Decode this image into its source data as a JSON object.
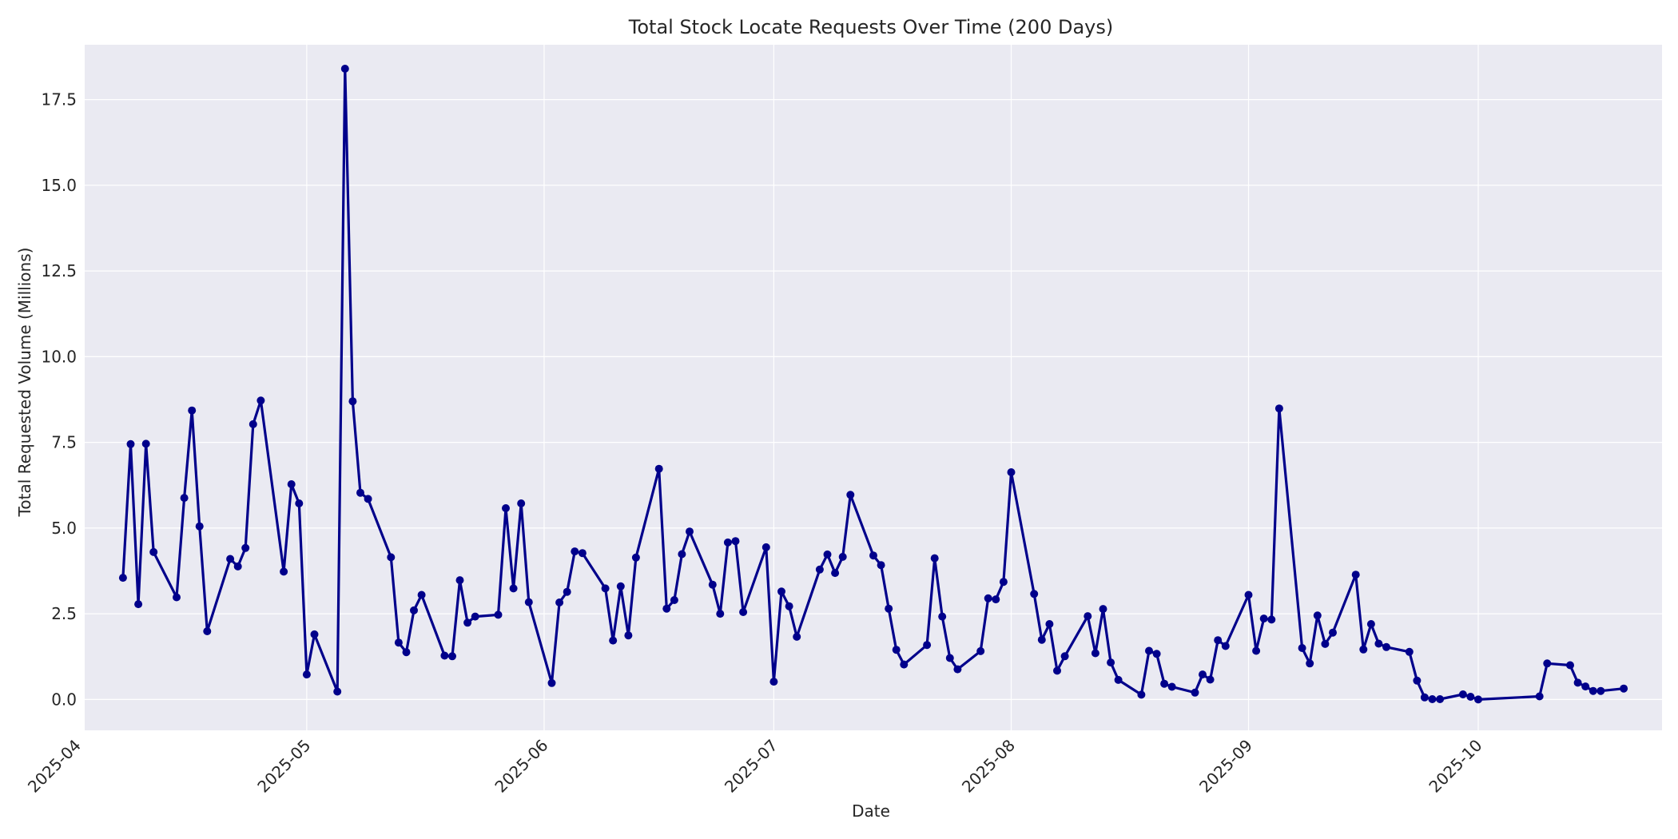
{
  "chart_data": {
    "type": "line",
    "title": "Total Stock Locate Requests Over Time (200 Days)",
    "xlabel": "Date",
    "ylabel": "Total Requested Volume (Millions)",
    "xlim": [
      "2025-04-02",
      "2025-10-25"
    ],
    "ylim": [
      -0.9,
      19.1
    ],
    "grid": true,
    "background_color": "#eaeaf2",
    "line_color": "#00008b",
    "y_ticks": [
      "0.0",
      "2.5",
      "5.0",
      "7.5",
      "10.0",
      "12.5",
      "15.0",
      "17.5"
    ],
    "x_ticks": [
      "2025-04",
      "2025-05",
      "2025-06",
      "2025-07",
      "2025-08",
      "2025-09",
      "2025-10"
    ],
    "series": [
      {
        "x": [
          "2025-04-07",
          "2025-04-08",
          "2025-04-09",
          "2025-04-10",
          "2025-04-11",
          "2025-04-14",
          "2025-04-15",
          "2025-04-16",
          "2025-04-17",
          "2025-04-18",
          "2025-04-21",
          "2025-04-22",
          "2025-04-23",
          "2025-04-24",
          "2025-04-25",
          "2025-04-28",
          "2025-04-29",
          "2025-04-30",
          "2025-05-01",
          "2025-05-02",
          "2025-05-05",
          "2025-05-06",
          "2025-05-07",
          "2025-05-08",
          "2025-05-09",
          "2025-05-12",
          "2025-05-13",
          "2025-05-14",
          "2025-05-15",
          "2025-05-16",
          "2025-05-19",
          "2025-05-20",
          "2025-05-21",
          "2025-05-22",
          "2025-05-23",
          "2025-05-26",
          "2025-05-27",
          "2025-05-28",
          "2025-05-29",
          "2025-05-30",
          "2025-06-02",
          "2025-06-03",
          "2025-06-04",
          "2025-06-05",
          "2025-06-06",
          "2025-06-09",
          "2025-06-10",
          "2025-06-11",
          "2025-06-12",
          "2025-06-13",
          "2025-06-16",
          "2025-06-17",
          "2025-06-18",
          "2025-06-19",
          "2025-06-20",
          "2025-06-23",
          "2025-06-24",
          "2025-06-25",
          "2025-06-26",
          "2025-06-27",
          "2025-06-30",
          "2025-07-01",
          "2025-07-02",
          "2025-07-03",
          "2025-07-04",
          "2025-07-07",
          "2025-07-08",
          "2025-07-09",
          "2025-07-10",
          "2025-07-11",
          "2025-07-14",
          "2025-07-15",
          "2025-07-16",
          "2025-07-17",
          "2025-07-18",
          "2025-07-21",
          "2025-07-22",
          "2025-07-23",
          "2025-07-24",
          "2025-07-25",
          "2025-07-28",
          "2025-07-29",
          "2025-07-30",
          "2025-07-31",
          "2025-08-01",
          "2025-08-04",
          "2025-08-05",
          "2025-08-06",
          "2025-08-07",
          "2025-08-08",
          "2025-08-11",
          "2025-08-12",
          "2025-08-13",
          "2025-08-14",
          "2025-08-15",
          "2025-08-18",
          "2025-08-19",
          "2025-08-20",
          "2025-08-21",
          "2025-08-22",
          "2025-08-25",
          "2025-08-26",
          "2025-08-27",
          "2025-08-28",
          "2025-08-29",
          "2025-09-01",
          "2025-09-02",
          "2025-09-03",
          "2025-09-04",
          "2025-09-05",
          "2025-09-08",
          "2025-09-09",
          "2025-09-10",
          "2025-09-11",
          "2025-09-12",
          "2025-09-15",
          "2025-09-16",
          "2025-09-17",
          "2025-09-18",
          "2025-09-19",
          "2025-09-22",
          "2025-09-23",
          "2025-09-24",
          "2025-09-25",
          "2025-09-26",
          "2025-09-29",
          "2025-09-30",
          "2025-10-01",
          "2025-10-09",
          "2025-10-10",
          "2025-10-13",
          "2025-10-14",
          "2025-10-15",
          "2025-10-16",
          "2025-10-17",
          "2025-10-20"
        ],
        "values": [
          3.55,
          7.45,
          2.78,
          7.46,
          4.3,
          2.98,
          5.88,
          8.43,
          5.05,
          1.99,
          4.1,
          3.88,
          4.42,
          8.03,
          8.72,
          3.73,
          6.28,
          5.72,
          0.73,
          1.9,
          0.23,
          18.4,
          8.7,
          6.03,
          5.85,
          4.15,
          1.66,
          1.38,
          2.6,
          3.05,
          1.28,
          1.26,
          3.48,
          2.24,
          2.42,
          2.47,
          5.58,
          3.24,
          5.72,
          2.84,
          0.48,
          2.83,
          3.14,
          4.32,
          4.27,
          3.24,
          1.72,
          3.3,
          1.87,
          4.14,
          6.73,
          2.65,
          2.9,
          4.24,
          4.9,
          3.35,
          2.5,
          4.58,
          4.62,
          2.55,
          4.44,
          0.52,
          3.15,
          2.72,
          1.83,
          3.79,
          4.23,
          3.69,
          4.16,
          5.97,
          4.2,
          3.92,
          2.65,
          1.45,
          1.02,
          1.59,
          4.12,
          2.42,
          1.21,
          0.88,
          1.41,
          2.95,
          2.92,
          3.43,
          6.63,
          3.08,
          1.74,
          2.2,
          0.84,
          1.26,
          2.43,
          1.35,
          2.64,
          1.08,
          0.57,
          0.14,
          1.42,
          1.33,
          0.46,
          0.37,
          0.2,
          0.73,
          0.58,
          1.73,
          1.56,
          3.05,
          1.42,
          2.36,
          2.33,
          8.49,
          1.5,
          1.05,
          2.45,
          1.62,
          1.95,
          3.64,
          1.46,
          2.2,
          1.63,
          1.53,
          1.39,
          0.55,
          0.06,
          0.01,
          0.01,
          0.15,
          0.08,
          0.0,
          0.09,
          1.05,
          1.0,
          0.49,
          0.38,
          0.25,
          0.25,
          0.32
        ]
      }
    ]
  }
}
